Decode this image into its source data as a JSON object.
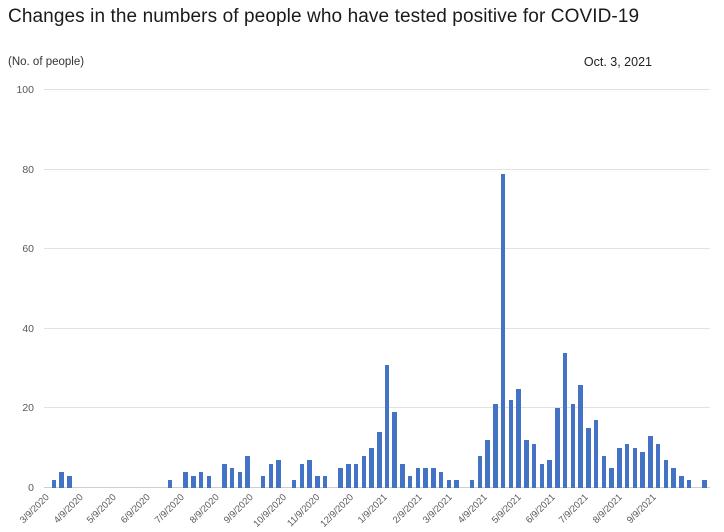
{
  "header": {
    "title": "Changes in the numbers of people who have tested positive for COVID-19",
    "y_axis_note": "(No. of people)",
    "date_label": "Oct. 3, 2021"
  },
  "chart_data": {
    "type": "bar",
    "title": "Changes in the numbers of people who have tested positive for COVID-19",
    "subtitle": "Oct. 3, 2021",
    "ylabel": "(No. of people)",
    "xlabel": "",
    "ylim": [
      0,
      100
    ],
    "yticks": [
      0,
      20,
      40,
      60,
      80,
      100
    ],
    "grid": true,
    "legend_position": "none",
    "bar_color": "#4472C4",
    "x_tick_labels": [
      "3/9/2020",
      "4/9/2020",
      "5/9/2020",
      "6/9/2020",
      "7/9/2020",
      "8/9/2020",
      "9/9/2020",
      "10/9/2020",
      "11/9/2020",
      "12/9/2020",
      "1/9/2021",
      "2/9/2021",
      "3/9/2021",
      "4/9/2021",
      "5/9/2021",
      "6/9/2021",
      "7/9/2021",
      "8/9/2021",
      "9/9/2021"
    ],
    "x_tick_week_positions": [
      0,
      4.4,
      8.7,
      13.1,
      17.4,
      21.9,
      26.3,
      30.6,
      35.0,
      39.3,
      43.7,
      48.1,
      52.1,
      56.6,
      60.9,
      65.3,
      69.6,
      74.0,
      78.4
    ],
    "x_unit": "week",
    "values": [
      0,
      2,
      4,
      3,
      0,
      0,
      0,
      0,
      0,
      0,
      0,
      0,
      0,
      0,
      0,
      0,
      2,
      0,
      4,
      3,
      4,
      3,
      0,
      6,
      5,
      4,
      8,
      0,
      3,
      6,
      7,
      0,
      2,
      6,
      7,
      3,
      3,
      0,
      5,
      6,
      6,
      8,
      10,
      14,
      31,
      19,
      6,
      3,
      5,
      5,
      5,
      4,
      2,
      2,
      0,
      2,
      8,
      12,
      21,
      79,
      22,
      25,
      12,
      11,
      6,
      7,
      20,
      34,
      21,
      26,
      15,
      17,
      8,
      5,
      10,
      11,
      10,
      9,
      13,
      11,
      7,
      5,
      3,
      2,
      0,
      2
    ]
  }
}
